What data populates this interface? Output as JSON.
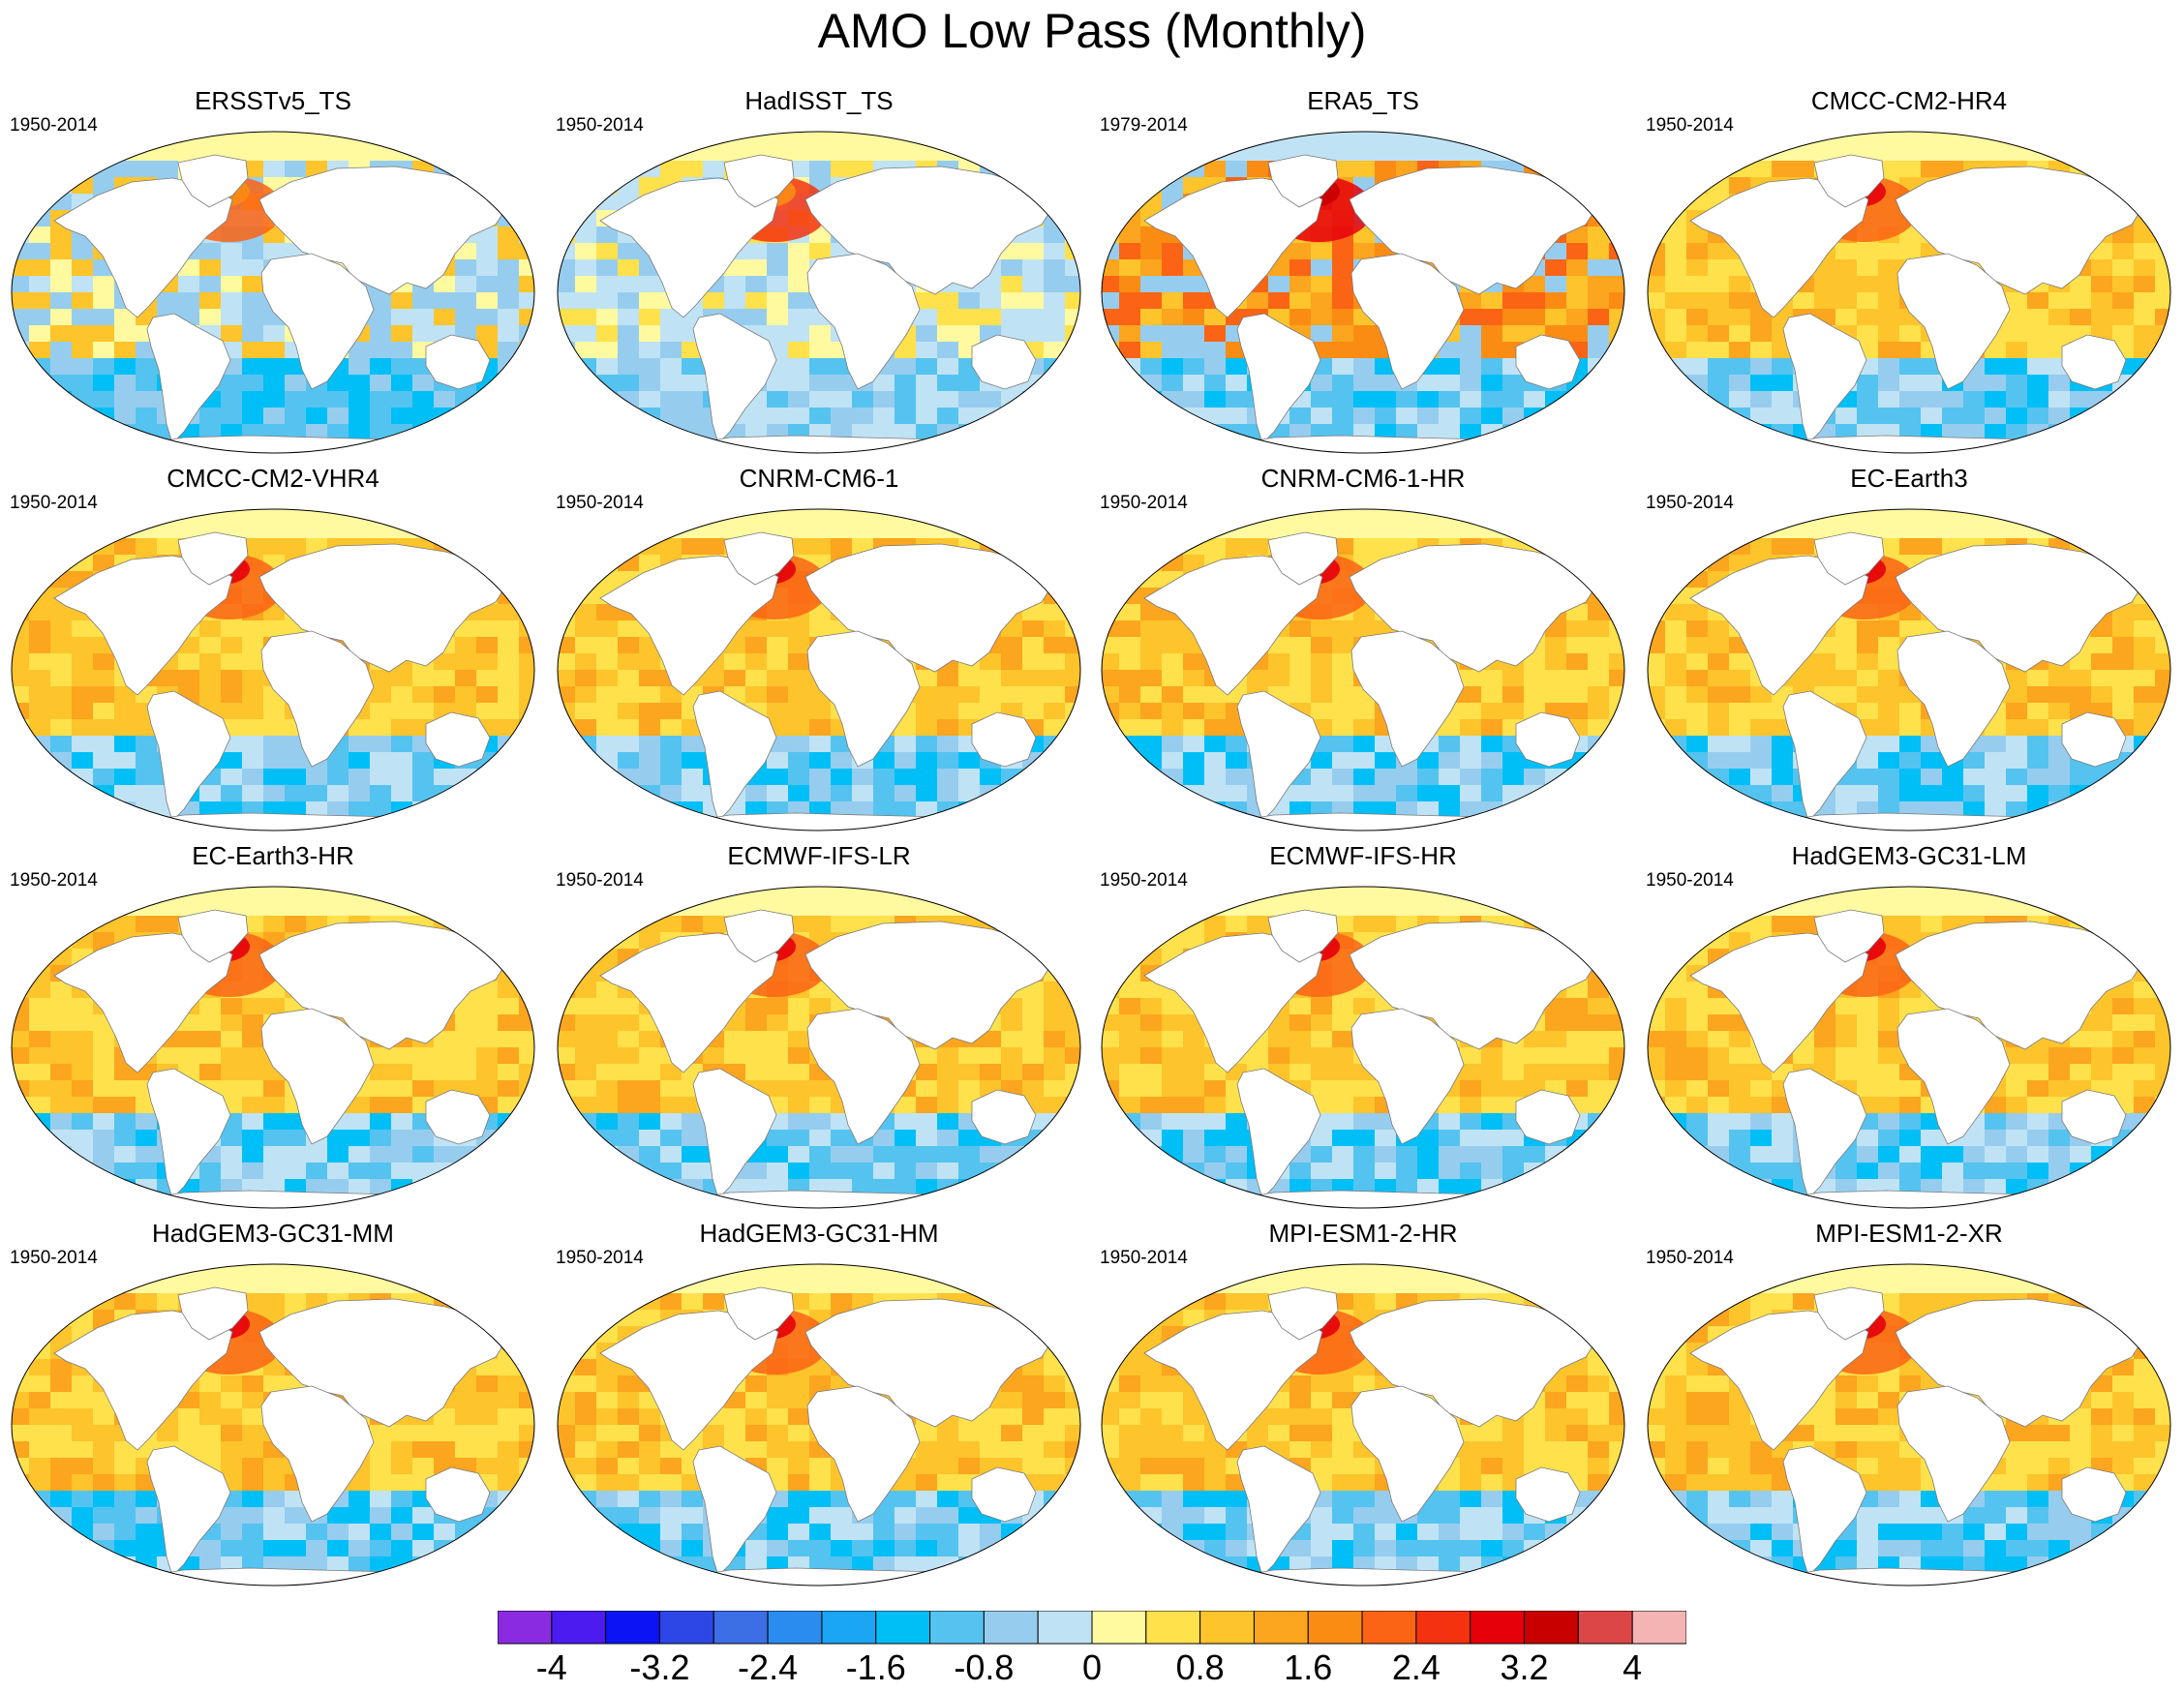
{
  "title": "AMO Low Pass (Monthly)",
  "panels": [
    {
      "name": "ERSSTv5_TS",
      "period": "1950-2014",
      "pattern": "obs-ersst"
    },
    {
      "name": "HadISST_TS",
      "period": "1950-2014",
      "pattern": "obs-hadisst"
    },
    {
      "name": "ERA5_TS",
      "period": "1979-2014",
      "pattern": "obs-era5"
    },
    {
      "name": "CMCC-CM2-HR4",
      "period": "1950-2014",
      "pattern": "model"
    },
    {
      "name": "CMCC-CM2-VHR4",
      "period": "1950-2014",
      "pattern": "model"
    },
    {
      "name": "CNRM-CM6-1",
      "period": "1950-2014",
      "pattern": "model"
    },
    {
      "name": "CNRM-CM6-1-HR",
      "period": "1950-2014",
      "pattern": "model"
    },
    {
      "name": "EC-Earth3",
      "period": "1950-2014",
      "pattern": "model"
    },
    {
      "name": "EC-Earth3-HR",
      "period": "1950-2014",
      "pattern": "model"
    },
    {
      "name": "ECMWF-IFS-LR",
      "period": "1950-2014",
      "pattern": "model"
    },
    {
      "name": "ECMWF-IFS-HR",
      "period": "1950-2014",
      "pattern": "model"
    },
    {
      "name": "HadGEM3-GC31-LM",
      "period": "1950-2014",
      "pattern": "model"
    },
    {
      "name": "HadGEM3-GC31-MM",
      "period": "1950-2014",
      "pattern": "model"
    },
    {
      "name": "HadGEM3-GC31-HM",
      "period": "1950-2014",
      "pattern": "model"
    },
    {
      "name": "MPI-ESM1-2-HR",
      "period": "1950-2014",
      "pattern": "model"
    },
    {
      "name": "MPI-ESM1-2-XR",
      "period": "1950-2014",
      "pattern": "model"
    }
  ],
  "colorbar": {
    "colors": [
      "#8a2be2",
      "#4b1bf0",
      "#0a14f5",
      "#2d46e6",
      "#3c6ee6",
      "#2b8cf0",
      "#1aa5f5",
      "#00bff7",
      "#55c3ef",
      "#96cdef",
      "#bfe3f5",
      "#fff9a0",
      "#ffe14b",
      "#fdc42b",
      "#fca51e",
      "#fa8c14",
      "#fa6414",
      "#f5320f",
      "#e6000a",
      "#c80000",
      "#dc4646",
      "#f5b4b4"
    ],
    "labels": [
      "-4",
      "-3.2",
      "-2.4",
      "-1.6",
      "-0.8",
      "0",
      "0.8",
      "1.6",
      "2.4",
      "3.2",
      "4"
    ],
    "range": [
      -4.4,
      4.4
    ]
  }
}
